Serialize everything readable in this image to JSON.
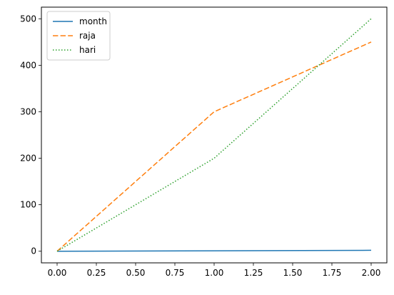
{
  "chart_data": {
    "type": "line",
    "title": "",
    "xlabel": "",
    "ylabel": "",
    "x": [
      0,
      1,
      2
    ],
    "xlim": [
      -0.1,
      2.1
    ],
    "ylim": [
      -25,
      525
    ],
    "xticks": [
      0,
      0.25,
      0.5,
      0.75,
      1,
      1.25,
      1.5,
      1.75,
      2
    ],
    "xtick_labels": [
      "0.00",
      "0.25",
      "0.50",
      "0.75",
      "1.00",
      "1.25",
      "1.50",
      "1.75",
      "2.00"
    ],
    "yticks": [
      0,
      100,
      200,
      300,
      400,
      500
    ],
    "ytick_labels": [
      "0",
      "100",
      "200",
      "300",
      "400",
      "500"
    ],
    "grid": false,
    "legend_position": "top-left",
    "series": [
      {
        "name": "month",
        "values": [
          0,
          1,
          2
        ],
        "color": "#1f77b4",
        "line_style": "solid"
      },
      {
        "name": "raja",
        "values": [
          0,
          300,
          450
        ],
        "color": "#ff7f0e",
        "line_style": "dashed"
      },
      {
        "name": "hari",
        "values": [
          0,
          200,
          500
        ],
        "color": "#2ca02c",
        "line_style": "dotted"
      }
    ]
  }
}
